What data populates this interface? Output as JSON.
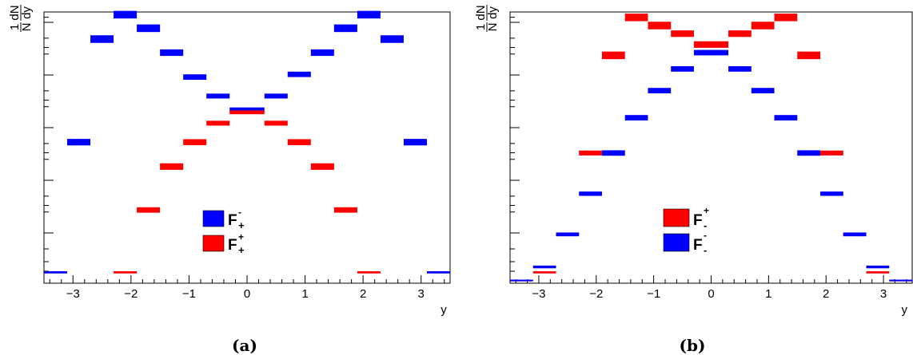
{
  "chart_data": [
    {
      "panel": "(a)",
      "type": "bar",
      "xlabel": "y",
      "ylabel": {
        "numerator": "1",
        "denominator": "N",
        "dnum": "dN",
        "dden": "dy"
      },
      "xlim": [
        -3.5,
        3.5
      ],
      "ylim": [
        0,
        1.0
      ],
      "x_ticks": [
        "−3",
        "−2",
        "−1",
        "0",
        "1",
        "2",
        "3"
      ],
      "x_tick_values": [
        -3,
        -2,
        -1,
        0,
        1,
        2,
        3
      ],
      "bin_edges": [
        -3.5,
        -3.1,
        -2.7,
        -2.3,
        -1.9,
        -1.5,
        -1.1,
        -0.7,
        -0.3,
        0.3,
        0.7,
        1.1,
        1.5,
        1.9,
        2.3,
        2.7,
        3.1,
        3.5
      ],
      "series": [
        {
          "legend_main": "F",
          "legend_sup": "-",
          "legend_sub": "+",
          "color": "#0000ff",
          "values": [
            0.04,
            0.52,
            0.9,
            0.99,
            0.94,
            0.85,
            0.76,
            0.69,
            0.64,
            0.69,
            0.77,
            0.85,
            0.94,
            0.99,
            0.9,
            0.52,
            0.04
          ],
          "err": [
            0.004,
            0.012,
            0.014,
            0.014,
            0.014,
            0.012,
            0.01,
            0.009,
            0.008,
            0.009,
            0.01,
            0.012,
            0.014,
            0.014,
            0.014,
            0.012,
            0.004
          ]
        },
        {
          "legend_main": "F",
          "legend_sup": "+",
          "legend_sub": "+",
          "color": "#ff0000",
          "values": [
            null,
            null,
            null,
            0.04,
            0.27,
            0.43,
            0.52,
            0.59,
            0.63,
            0.59,
            0.52,
            0.43,
            0.27,
            0.04,
            null,
            null,
            null
          ],
          "err": [
            0,
            0,
            0,
            0.004,
            0.01,
            0.012,
            0.011,
            0.009,
            0.007,
            0.009,
            0.011,
            0.012,
            0.01,
            0.004,
            0,
            0,
            0
          ]
        }
      ],
      "legend_order": [
        0,
        1
      ]
    },
    {
      "panel": "(b)",
      "type": "bar",
      "xlabel": "y",
      "ylabel": {
        "numerator": "1",
        "denominator": "N",
        "dnum": "dN",
        "dden": "dy"
      },
      "xlim": [
        -3.5,
        3.5
      ],
      "ylim": [
        0,
        1.0
      ],
      "x_ticks": [
        "−3",
        "−2",
        "−1",
        "0",
        "1",
        "2",
        "3"
      ],
      "x_tick_values": [
        -3,
        -2,
        -1,
        0,
        1,
        2,
        3
      ],
      "bin_edges": [
        -3.5,
        -3.1,
        -2.7,
        -2.3,
        -1.9,
        -1.5,
        -1.1,
        -0.7,
        -0.3,
        0.3,
        0.7,
        1.1,
        1.5,
        1.9,
        2.3,
        2.7,
        3.1,
        3.5
      ],
      "series": [
        {
          "legend_main": "F",
          "legend_sup": "+",
          "legend_sub": "-",
          "color": "#ff0000",
          "values": [
            0.01,
            0.04,
            0.18,
            0.48,
            0.84,
            0.98,
            0.95,
            0.92,
            0.88,
            0.92,
            0.95,
            0.98,
            0.84,
            0.48,
            0.18,
            0.04,
            0.01
          ],
          "err": [
            0.003,
            0.004,
            0.006,
            0.009,
            0.014,
            0.014,
            0.014,
            0.012,
            0.012,
            0.012,
            0.014,
            0.014,
            0.014,
            0.009,
            0.006,
            0.004,
            0.003
          ]
        },
        {
          "legend_main": "F",
          "legend_sup": "-",
          "legend_sub": "-",
          "color": "#0000ff",
          "values": [
            0.01,
            0.06,
            0.18,
            0.33,
            0.48,
            0.61,
            0.71,
            0.79,
            0.85,
            0.79,
            0.71,
            0.61,
            0.48,
            0.33,
            0.18,
            0.06,
            0.01
          ],
          "err": [
            0.003,
            0.005,
            0.007,
            0.008,
            0.01,
            0.01,
            0.01,
            0.01,
            0.01,
            0.01,
            0.01,
            0.01,
            0.01,
            0.008,
            0.007,
            0.005,
            0.003
          ]
        }
      ],
      "legend_order": [
        0,
        1
      ]
    }
  ],
  "captions": [
    "(a)",
    "(b)"
  ]
}
